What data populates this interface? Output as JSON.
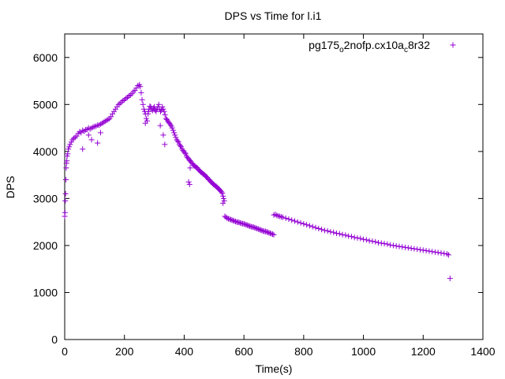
{
  "chart_data": {
    "type": "scatter",
    "title": "DPS vs Time for l.i1",
    "xlabel": "Time(s)",
    "ylabel": "DPS",
    "xlim": [
      0,
      1400
    ],
    "ylim": [
      0,
      6500
    ],
    "xticks": [
      0,
      200,
      400,
      600,
      800,
      1000,
      1200,
      1400
    ],
    "yticks": [
      0,
      1000,
      2000,
      3000,
      4000,
      5000,
      6000
    ],
    "grid": false,
    "legend": "top-right",
    "marker": "plus",
    "color": "#9400d3",
    "series": [
      {
        "name": "pg175_o2nofp.cx10a_c8r32",
        "legend_parts": [
          "pg175",
          "o",
          "2nofp.cx10a",
          "c",
          "8r32"
        ],
        "points": [
          [
            0,
            2620
          ],
          [
            1,
            2700
          ],
          [
            2,
            2950
          ],
          [
            3,
            3100
          ],
          [
            4,
            3400
          ],
          [
            5,
            3650
          ],
          [
            6,
            3750
          ],
          [
            7,
            3800
          ],
          [
            8,
            3900
          ],
          [
            10,
            3950
          ],
          [
            12,
            4050
          ],
          [
            15,
            4100
          ],
          [
            18,
            4150
          ],
          [
            22,
            4200
          ],
          [
            26,
            4250
          ],
          [
            30,
            4280
          ],
          [
            35,
            4300
          ],
          [
            40,
            4330
          ],
          [
            45,
            4380
          ],
          [
            50,
            4420
          ],
          [
            55,
            4400
          ],
          [
            60,
            4450
          ],
          [
            65,
            4430
          ],
          [
            70,
            4460
          ],
          [
            75,
            4470
          ],
          [
            80,
            4500
          ],
          [
            85,
            4480
          ],
          [
            90,
            4500
          ],
          [
            95,
            4520
          ],
          [
            100,
            4530
          ],
          [
            105,
            4540
          ],
          [
            110,
            4560
          ],
          [
            115,
            4560
          ],
          [
            120,
            4580
          ],
          [
            125,
            4600
          ],
          [
            130,
            4620
          ],
          [
            135,
            4640
          ],
          [
            140,
            4660
          ],
          [
            145,
            4680
          ],
          [
            150,
            4700
          ],
          [
            155,
            4740
          ],
          [
            160,
            4800
          ],
          [
            165,
            4850
          ],
          [
            170,
            4900
          ],
          [
            175,
            4950
          ],
          [
            180,
            5000
          ],
          [
            185,
            5020
          ],
          [
            190,
            5050
          ],
          [
            195,
            5080
          ],
          [
            200,
            5100
          ],
          [
            205,
            5130
          ],
          [
            210,
            5150
          ],
          [
            215,
            5180
          ],
          [
            220,
            5200
          ],
          [
            225,
            5230
          ],
          [
            230,
            5270
          ],
          [
            235,
            5300
          ],
          [
            240,
            5350
          ],
          [
            245,
            5400
          ],
          [
            250,
            5420
          ],
          [
            253,
            5380
          ],
          [
            256,
            5250
          ],
          [
            259,
            5100
          ],
          [
            262,
            5000
          ],
          [
            265,
            4900
          ],
          [
            268,
            4850
          ],
          [
            270,
            4800
          ],
          [
            273,
            4700
          ],
          [
            276,
            4650
          ],
          [
            279,
            4800
          ],
          [
            282,
            4900
          ],
          [
            285,
            4960
          ],
          [
            288,
            4950
          ],
          [
            291,
            4900
          ],
          [
            294,
            4870
          ],
          [
            297,
            4920
          ],
          [
            300,
            4950
          ],
          [
            303,
            4880
          ],
          [
            306,
            4850
          ],
          [
            309,
            4900
          ],
          [
            312,
            4950
          ],
          [
            315,
            5000
          ],
          [
            318,
            4900
          ],
          [
            321,
            4850
          ],
          [
            324,
            4880
          ],
          [
            327,
            4950
          ],
          [
            330,
            4900
          ],
          [
            333,
            4850
          ],
          [
            336,
            4780
          ],
          [
            339,
            4700
          ],
          [
            342,
            4680
          ],
          [
            345,
            4650
          ],
          [
            348,
            4620
          ],
          [
            351,
            4600
          ],
          [
            354,
            4570
          ],
          [
            357,
            4540
          ],
          [
            360,
            4500
          ],
          [
            363,
            4450
          ],
          [
            366,
            4400
          ],
          [
            369,
            4350
          ],
          [
            372,
            4300
          ],
          [
            375,
            4250
          ],
          [
            378,
            4220
          ],
          [
            381,
            4200
          ],
          [
            384,
            4150
          ],
          [
            387,
            4120
          ],
          [
            390,
            4100
          ],
          [
            393,
            4050
          ],
          [
            396,
            4020
          ],
          [
            399,
            4000
          ],
          [
            402,
            3970
          ],
          [
            405,
            3950
          ],
          [
            408,
            3900
          ],
          [
            411,
            3870
          ],
          [
            414,
            3850
          ],
          [
            417,
            3820
          ],
          [
            420,
            3800
          ],
          [
            423,
            3780
          ],
          [
            426,
            3750
          ],
          [
            429,
            3730
          ],
          [
            432,
            3700
          ],
          [
            435,
            3690
          ],
          [
            438,
            3680
          ],
          [
            441,
            3660
          ],
          [
            444,
            3650
          ],
          [
            447,
            3620
          ],
          [
            450,
            3600
          ],
          [
            453,
            3580
          ],
          [
            456,
            3560
          ],
          [
            459,
            3550
          ],
          [
            462,
            3530
          ],
          [
            465,
            3520
          ],
          [
            468,
            3500
          ],
          [
            471,
            3480
          ],
          [
            474,
            3460
          ],
          [
            477,
            3450
          ],
          [
            480,
            3420
          ],
          [
            483,
            3400
          ],
          [
            486,
            3380
          ],
          [
            489,
            3360
          ],
          [
            492,
            3340
          ],
          [
            495,
            3320
          ],
          [
            498,
            3300
          ],
          [
            501,
            3290
          ],
          [
            504,
            3270
          ],
          [
            507,
            3260
          ],
          [
            510,
            3240
          ],
          [
            513,
            3220
          ],
          [
            516,
            3200
          ],
          [
            519,
            3180
          ],
          [
            522,
            3160
          ],
          [
            525,
            3140
          ],
          [
            528,
            3110
          ],
          [
            530,
            3050
          ],
          [
            532,
            3000
          ],
          [
            534,
            2950
          ],
          [
            536,
            2620
          ],
          [
            540,
            2600
          ],
          [
            544,
            2580
          ],
          [
            548,
            2570
          ],
          [
            552,
            2560
          ],
          [
            556,
            2550
          ],
          [
            560,
            2540
          ],
          [
            564,
            2530
          ],
          [
            568,
            2520
          ],
          [
            572,
            2510
          ],
          [
            576,
            2500
          ],
          [
            580,
            2495
          ],
          [
            584,
            2490
          ],
          [
            588,
            2480
          ],
          [
            592,
            2470
          ],
          [
            596,
            2465
          ],
          [
            600,
            2460
          ],
          [
            604,
            2450
          ],
          [
            608,
            2440
          ],
          [
            612,
            2430
          ],
          [
            616,
            2420
          ],
          [
            620,
            2410
          ],
          [
            624,
            2400
          ],
          [
            628,
            2395
          ],
          [
            632,
            2390
          ],
          [
            636,
            2380
          ],
          [
            640,
            2370
          ],
          [
            644,
            2360
          ],
          [
            648,
            2350
          ],
          [
            652,
            2340
          ],
          [
            656,
            2330
          ],
          [
            660,
            2320
          ],
          [
            664,
            2310
          ],
          [
            668,
            2300
          ],
          [
            672,
            2300
          ],
          [
            676,
            2290
          ],
          [
            680,
            2280
          ],
          [
            684,
            2270
          ],
          [
            688,
            2260
          ],
          [
            692,
            2250
          ],
          [
            696,
            2240
          ],
          [
            700,
            2230
          ],
          [
            700,
            2650
          ],
          [
            705,
            2660
          ],
          [
            710,
            2640
          ],
          [
            715,
            2630
          ],
          [
            720,
            2620
          ],
          [
            725,
            2610
          ],
          [
            730,
            2600
          ],
          [
            740,
            2580
          ],
          [
            750,
            2560
          ],
          [
            760,
            2540
          ],
          [
            770,
            2520
          ],
          [
            780,
            2500
          ],
          [
            790,
            2480
          ],
          [
            800,
            2460
          ],
          [
            810,
            2440
          ],
          [
            820,
            2420
          ],
          [
            830,
            2400
          ],
          [
            840,
            2380
          ],
          [
            850,
            2360
          ],
          [
            860,
            2340
          ],
          [
            870,
            2320
          ],
          [
            880,
            2310
          ],
          [
            890,
            2290
          ],
          [
            900,
            2280
          ],
          [
            910,
            2260
          ],
          [
            920,
            2250
          ],
          [
            930,
            2230
          ],
          [
            940,
            2220
          ],
          [
            950,
            2200
          ],
          [
            960,
            2190
          ],
          [
            970,
            2170
          ],
          [
            980,
            2160
          ],
          [
            990,
            2150
          ],
          [
            1000,
            2130
          ],
          [
            1010,
            2120
          ],
          [
            1020,
            2100
          ],
          [
            1030,
            2090
          ],
          [
            1040,
            2080
          ],
          [
            1050,
            2060
          ],
          [
            1060,
            2050
          ],
          [
            1070,
            2040
          ],
          [
            1080,
            2030
          ],
          [
            1090,
            2010
          ],
          [
            1100,
            2000
          ],
          [
            1110,
            1990
          ],
          [
            1120,
            1980
          ],
          [
            1130,
            1970
          ],
          [
            1140,
            1960
          ],
          [
            1150,
            1950
          ],
          [
            1160,
            1940
          ],
          [
            1170,
            1930
          ],
          [
            1180,
            1920
          ],
          [
            1190,
            1910
          ],
          [
            1200,
            1900
          ],
          [
            1210,
            1890
          ],
          [
            1220,
            1880
          ],
          [
            1230,
            1870
          ],
          [
            1240,
            1860
          ],
          [
            1250,
            1850
          ],
          [
            1260,
            1840
          ],
          [
            1270,
            1830
          ],
          [
            1280,
            1820
          ],
          [
            1285,
            1800
          ],
          [
            60,
            4050
          ],
          [
            90,
            4250
          ],
          [
            110,
            4180
          ],
          [
            80,
            4350
          ],
          [
            120,
            4400
          ],
          [
            270,
            4600
          ],
          [
            280,
            4850
          ],
          [
            320,
            4550
          ],
          [
            330,
            4350
          ],
          [
            335,
            4150
          ],
          [
            415,
            3350
          ],
          [
            418,
            3300
          ],
          [
            420,
            3650
          ],
          [
            530,
            2900
          ],
          [
            1290,
            1300
          ]
        ]
      }
    ]
  }
}
